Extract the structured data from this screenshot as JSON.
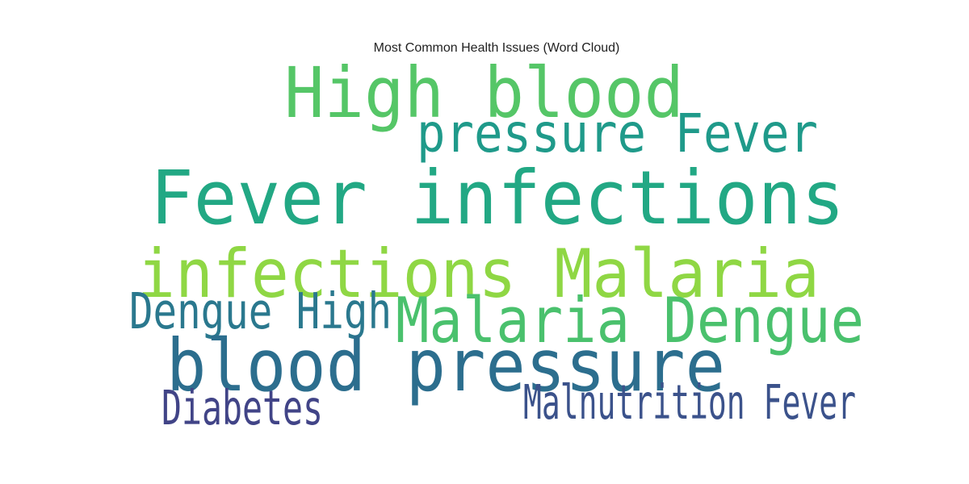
{
  "chart_data": {
    "type": "wordcloud",
    "title": "Most Common Health Issues (Word Cloud)",
    "words": [
      {
        "text": "High blood",
        "weight": 0.9,
        "color": "#55c667"
      },
      {
        "text": "pressure Fever",
        "weight": 0.55,
        "color": "#1f9a8a"
      },
      {
        "text": "Fever infections",
        "weight": 1.0,
        "color": "#22a884"
      },
      {
        "text": "infections Malaria",
        "weight": 0.85,
        "color": "#8fd744"
      },
      {
        "text": "Dengue High",
        "weight": 0.48,
        "color": "#2a788e"
      },
      {
        "text": "Malaria Dengue",
        "weight": 0.75,
        "color": "#4ac16d"
      },
      {
        "text": "blood pressure",
        "weight": 0.95,
        "color": "#2c6e8e"
      },
      {
        "text": "Diabetes",
        "weight": 0.42,
        "color": "#414487"
      },
      {
        "text": "Malnutrition Fever",
        "weight": 0.42,
        "color": "#3b528b"
      }
    ]
  }
}
